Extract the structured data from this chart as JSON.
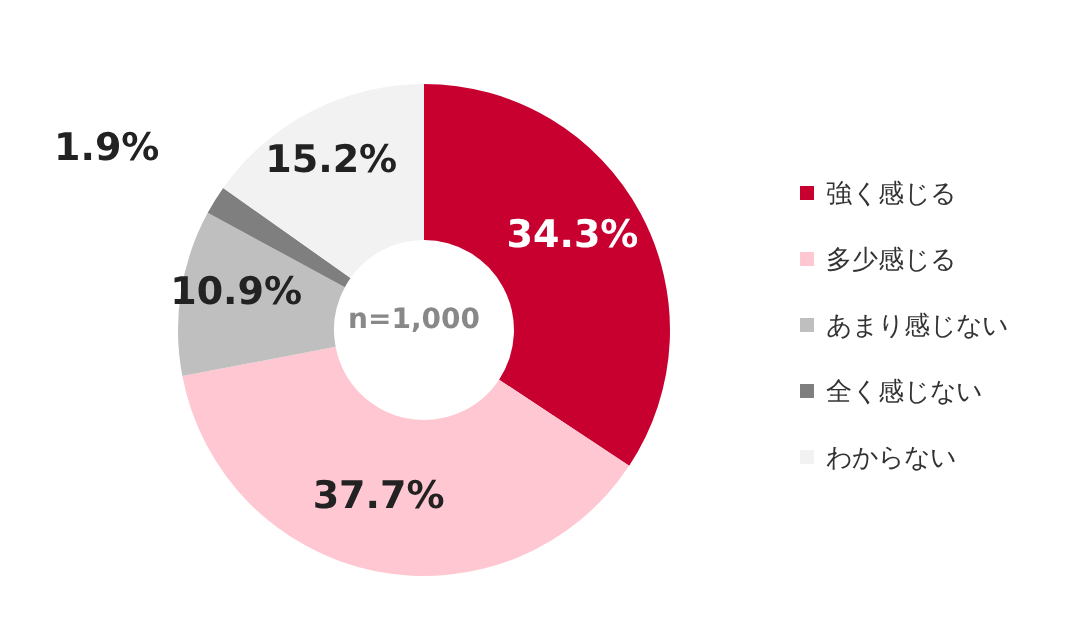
{
  "chart_data": {
    "type": "donut",
    "categories": [
      "強く感じる",
      "多少感じる",
      "あまり感じない",
      "全く感じない",
      "わからない"
    ],
    "values": [
      34.3,
      37.7,
      10.9,
      1.9,
      15.2
    ],
    "colors": [
      "#c8002f",
      "#ffc7d1",
      "#bfbfbf",
      "#7f7f7f",
      "#f2f2f2"
    ],
    "value_labels": [
      "34.3%",
      "37.7%",
      "10.9%",
      "1.9%",
      "15.2%"
    ],
    "annotations": [
      "n=1,000"
    ],
    "legend": "right"
  }
}
